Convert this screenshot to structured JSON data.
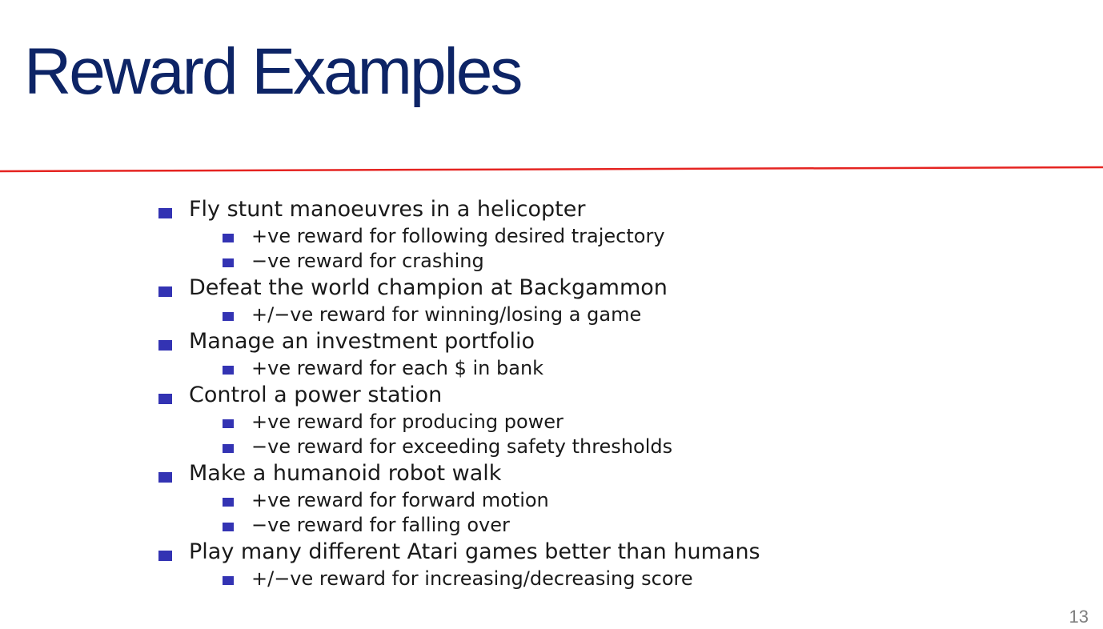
{
  "slide": {
    "title": "Reward Examples",
    "page_number": "13",
    "colors": {
      "title": "#0d2466",
      "divider": "#e52421",
      "bullet": "#3333b3",
      "text": "#1a1a1a",
      "page_number": "#7f7f7f"
    }
  },
  "items": [
    {
      "label": "Fly stunt manoeuvres in a helicopter",
      "subitems": [
        "+ve reward for following desired trajectory",
        "−ve reward for crashing"
      ]
    },
    {
      "label": "Defeat the world champion at Backgammon",
      "subitems": [
        "+/−ve reward for winning/losing a game"
      ]
    },
    {
      "label": "Manage an investment portfolio",
      "subitems": [
        "+ve reward for each $ in bank"
      ]
    },
    {
      "label": "Control a power station",
      "subitems": [
        "+ve reward for producing power",
        "−ve reward for exceeding safety thresholds"
      ]
    },
    {
      "label": "Make a humanoid robot walk",
      "subitems": [
        "+ve reward for forward motion",
        "−ve reward for falling over"
      ]
    },
    {
      "label": "Play many different Atari games better than humans",
      "subitems": [
        "+/−ve reward for increasing/decreasing score"
      ]
    }
  ]
}
